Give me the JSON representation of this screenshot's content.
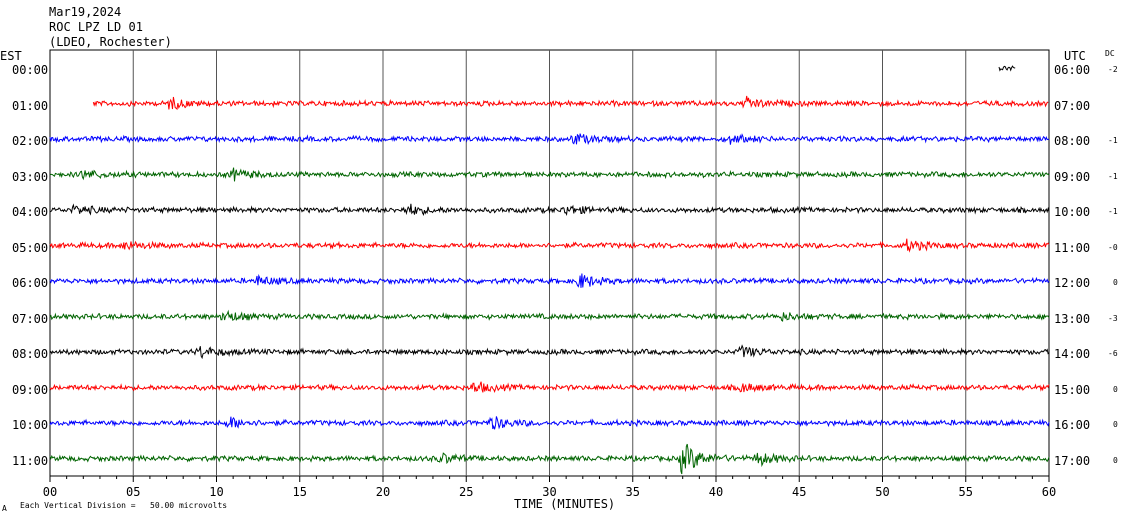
{
  "header": {
    "date": "Mar19,2024",
    "station": "ROC LPZ LD 01",
    "network": "(LDEO, Rochester)"
  },
  "left_zone": "EST",
  "right_zone": "UTC",
  "dc_header": "DC",
  "footer": {
    "scale_note": "Each Vertical Division =   50.00 microvolts",
    "corner_mark": "A"
  },
  "chart_data": {
    "type": "line",
    "title": "",
    "xlabel": "TIME (MINUTES)",
    "ylabel": "",
    "xlim": [
      0,
      60
    ],
    "x_ticks": [
      "00",
      "05",
      "10",
      "15",
      "20",
      "25",
      "30",
      "35",
      "40",
      "45",
      "50",
      "55",
      "60"
    ],
    "grid": "vertical lines every 5 minutes",
    "trace_colors": [
      "#000000",
      "#ff0000",
      "#0000ff",
      "#006400"
    ],
    "rows": [
      {
        "est": "00:00",
        "utc": "06:00",
        "dc": "-2",
        "color": "#000000",
        "start_min": 57.0,
        "end_min": 58.0,
        "events": []
      },
      {
        "est": "01:00",
        "utc": "07:00",
        "dc": "",
        "color": "#ff0000",
        "start_min": 2.6,
        "end_min": 60,
        "events": [
          {
            "t": 7.2,
            "amp": 5
          },
          {
            "t": 41.8,
            "amp": 5
          }
        ]
      },
      {
        "est": "02:00",
        "utc": "08:00",
        "dc": "-1",
        "color": "#0000ff",
        "start_min": 0,
        "end_min": 60,
        "events": [
          {
            "t": 31.5,
            "amp": 5
          },
          {
            "t": 40.8,
            "amp": 4
          }
        ]
      },
      {
        "est": "03:00",
        "utc": "09:00",
        "dc": "-1",
        "color": "#006400",
        "start_min": 0,
        "end_min": 60,
        "events": [
          {
            "t": 11.0,
            "amp": 5
          },
          {
            "t": 2.0,
            "amp": 4
          }
        ]
      },
      {
        "est": "04:00",
        "utc": "10:00",
        "dc": "-1",
        "color": "#000000",
        "start_min": 0,
        "end_min": 60,
        "events": [
          {
            "t": 1.5,
            "amp": 4
          },
          {
            "t": 21.5,
            "amp": 5
          },
          {
            "t": 31.0,
            "amp": 4
          }
        ]
      },
      {
        "est": "05:00",
        "utc": "11:00",
        "dc": "-0",
        "color": "#ff0000",
        "start_min": 0,
        "end_min": 60,
        "events": [
          {
            "t": 4.5,
            "amp": 4
          },
          {
            "t": 51.5,
            "amp": 5
          }
        ]
      },
      {
        "est": "06:00",
        "utc": "12:00",
        "dc": "0",
        "color": "#0000ff",
        "start_min": 0,
        "end_min": 60,
        "events": [
          {
            "t": 31.8,
            "amp": 7
          },
          {
            "t": 12.5,
            "amp": 4
          }
        ]
      },
      {
        "est": "07:00",
        "utc": "13:00",
        "dc": "-3",
        "color": "#006400",
        "start_min": 0,
        "end_min": 60,
        "events": [
          {
            "t": 10.5,
            "amp": 5
          },
          {
            "t": 44.0,
            "amp": 3
          }
        ]
      },
      {
        "est": "08:00",
        "utc": "14:00",
        "dc": "-6",
        "color": "#000000",
        "start_min": 0,
        "end_min": 60,
        "events": [
          {
            "t": 9.0,
            "amp": 5
          },
          {
            "t": 41.5,
            "amp": 5
          }
        ]
      },
      {
        "est": "09:00",
        "utc": "15:00",
        "dc": "0",
        "color": "#ff0000",
        "start_min": 0,
        "end_min": 60,
        "events": [
          {
            "t": 25.5,
            "amp": 5
          },
          {
            "t": 41.5,
            "amp": 4
          }
        ]
      },
      {
        "est": "10:00",
        "utc": "16:00",
        "dc": "0",
        "color": "#0000ff",
        "start_min": 0,
        "end_min": 60,
        "events": [
          {
            "t": 10.8,
            "amp": 5
          },
          {
            "t": 26.5,
            "amp": 6
          }
        ]
      },
      {
        "est": "11:00",
        "utc": "17:00",
        "dc": "0",
        "color": "#006400",
        "start_min": 0,
        "end_min": 60,
        "events": [
          {
            "t": 38.0,
            "amp": 16
          },
          {
            "t": 42.5,
            "amp": 6
          },
          {
            "t": 23.5,
            "amp": 4
          }
        ]
      }
    ]
  }
}
